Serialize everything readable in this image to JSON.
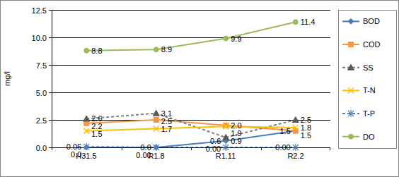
{
  "chart_data": {
    "type": "line",
    "y_label": "mg/l",
    "categories": [
      "H31.5",
      "R1.8",
      "R1.11",
      "R2.2"
    ],
    "ylim": [
      0,
      12.5
    ],
    "yticks": [
      {
        "value": 0,
        "label": "0.0"
      },
      2.5,
      {
        "value": 5,
        "label": "5.0"
      },
      7.5,
      {
        "value": 10,
        "label": "10.0"
      },
      12.5
    ],
    "grid": true,
    "legend": "right",
    "data_labels": true,
    "series": [
      {
        "name": "BOD",
        "color": "#4a7ebb",
        "marker": "diamond",
        "line_style": "solid",
        "values": [
          0.0,
          0.0,
          0.6,
          1.5
        ],
        "value_labels": [
          "0.0",
          "0.0",
          "0.6",
          "1.5"
        ]
      },
      {
        "name": "COD",
        "color": "#f79646",
        "marker": "square",
        "line_style": "solid",
        "values": [
          2.2,
          2.5,
          2.0,
          1.5
        ],
        "value_labels": [
          "2.2",
          "2.5",
          "2.0",
          "1.5"
        ]
      },
      {
        "name": "SS",
        "color": "#7f7f7f",
        "marker": "triangle",
        "line_style": "dashed",
        "values": [
          2.6,
          3.1,
          0.9,
          2.5
        ],
        "value_labels": [
          "2.6",
          "3.1",
          "0.9",
          "2.5"
        ]
      },
      {
        "name": "T-N",
        "color": "#ffc000",
        "marker": "x",
        "line_style": "solid",
        "values": [
          1.5,
          1.7,
          1.9,
          1.8
        ],
        "value_labels": [
          "1.5",
          "1.7",
          "1.9",
          "1.8"
        ]
      },
      {
        "name": "T-P",
        "color": "#4f81bd",
        "marker": "asterisk",
        "line_style": "dashed",
        "values": [
          0.06,
          0.0,
          0.0,
          0.0
        ],
        "value_labels": [
          "0.06",
          "0.00",
          "0.00",
          "0.00"
        ]
      },
      {
        "name": "DO",
        "color": "#9bbb59",
        "marker": "circle",
        "line_style": "solid",
        "values": [
          8.8,
          8.9,
          9.9,
          11.4
        ],
        "value_labels": [
          "8.8",
          "8.9",
          "9.9",
          "11.4"
        ]
      }
    ]
  }
}
